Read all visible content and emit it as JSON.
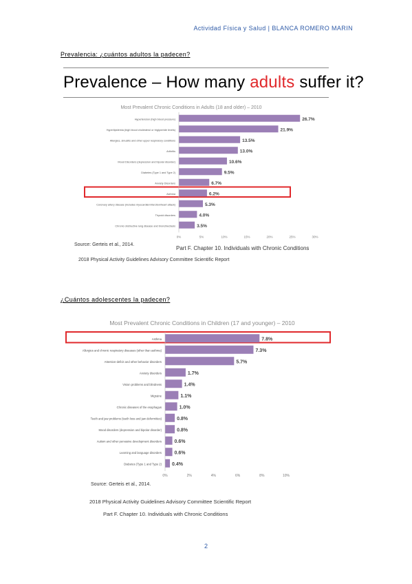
{
  "header": {
    "course": "Actividad Física y Salud",
    "separator": "|",
    "author": "BLANCA ROMERO MARIN"
  },
  "section1": {
    "heading": "Prevalencia: ¿cuántos adultos la padecen?",
    "slide_title_pre": "Prevalence – How many ",
    "slide_title_accent": "adults",
    "slide_title_post": " suffer it?",
    "source": "Source: Gerteis et al., 2014.",
    "part": "Part F. Chapter 10. Individuals with Chronic Conditions",
    "report": "2018 Physical Activity Guidelines Advisory Committee Scientific Report"
  },
  "section2": {
    "heading": "¿Cuántos adolescentes la padecen?",
    "source": "Source: Gerteis et al., 2014.",
    "report": "2018 Physical Activity Guidelines Advisory Committee Scientific Report",
    "part": "Part F. Chapter 10. Individuals with Chronic Conditions"
  },
  "page_number": "2",
  "colors": {
    "bar": "#9b7fb6",
    "highlight": "#e0282b",
    "header": "#2e5aa7"
  },
  "chart_data": [
    {
      "type": "bar",
      "orientation": "horizontal",
      "title": "Most Prevalent Chronic Conditions in Adults (18 and older) – 2010",
      "categories": [
        "Hypertension (high blood pressure)",
        "Hyperlipidemia (high blood cholesterol or triglyceride levels)",
        "Allergies, sinusitis and other upper respiratory conditions",
        "Arthritis",
        "Mood Disorders (depression and bipolar disorder)",
        "Diabetes (Type 1 and Type 2)",
        "Anxiety Disorders",
        "Asthma",
        "Coronary artery disease (includes myocardial infarction/heart attack)",
        "Thyroid disorders",
        "Chronic obstructive lung disease and bronchiectasis"
      ],
      "values": [
        26.7,
        21.9,
        13.5,
        13.0,
        10.6,
        9.5,
        6.7,
        6.2,
        5.3,
        4.0,
        3.5
      ],
      "labels": [
        "26.7%",
        "21.9%",
        "13.5%",
        "13.0%",
        "10.6%",
        "9.5%",
        "6.7%",
        "6.2%",
        "5.3%",
        "4.0%",
        "3.5%"
      ],
      "xlim": [
        0,
        30
      ],
      "xticks": [
        "0%",
        "5%",
        "10%",
        "15%",
        "20%",
        "25%",
        "30%"
      ],
      "highlighted": "Asthma"
    },
    {
      "type": "bar",
      "orientation": "horizontal",
      "title": "Most Prevalent Chronic Conditions in Children (17 and younger) – 2010",
      "categories": [
        "Asthma",
        "Allergies and chronic respiratory diseases (other than asthma)",
        "Attention-deficit and other behavior disorders",
        "Anxiety disorders",
        "Vision problems and blindness",
        "Migraine",
        "Chronic diseases of the esophagus",
        "Teeth and jaw problems (teeth loss and jaw deformities)",
        "Mood disorders (depression and bipolar disorder)",
        "Autism and other pervasive development disorders",
        "Learning and language disorders",
        "Diabetes (Type 1 and Type 2)"
      ],
      "values": [
        7.8,
        7.3,
        5.7,
        1.7,
        1.4,
        1.1,
        1.0,
        0.8,
        0.8,
        0.6,
        0.6,
        0.4
      ],
      "labels": [
        "7.8%",
        "7.3%",
        "5.7%",
        "1.7%",
        "1.4%",
        "1.1%",
        "1.0%",
        "0.8%",
        "0.8%",
        "0.6%",
        "0.6%",
        "0.4%"
      ],
      "xlim": [
        0,
        10
      ],
      "xticks": [
        "0%",
        "2%",
        "4%",
        "6%",
        "8%",
        "10%"
      ],
      "highlighted": "Asthma"
    }
  ]
}
